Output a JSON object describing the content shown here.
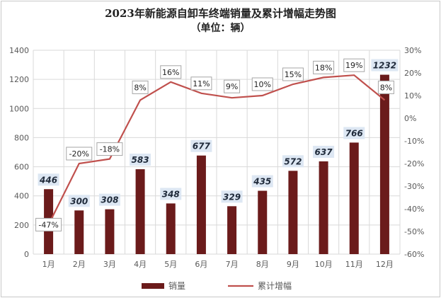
{
  "title": "2023年新能源自卸车终端销量及累计增幅走势图",
  "subtitle": "（单位：辆）",
  "colors": {
    "bar": "#6b1b1b",
    "line": "#c0504d",
    "grid": "#d9d9d9",
    "label_bg": "#dde7f3"
  },
  "chart_data": {
    "type": "bar",
    "categories": [
      "1月",
      "2月",
      "3月",
      "4月",
      "5月",
      "6月",
      "7月",
      "8月",
      "9月",
      "10月",
      "11月",
      "12月"
    ],
    "series": [
      {
        "name": "销量",
        "type": "bar",
        "axis": "left",
        "values": [
          446,
          300,
          308,
          583,
          348,
          677,
          329,
          435,
          572,
          637,
          766,
          1232
        ]
      },
      {
        "name": "累计增幅",
        "type": "line",
        "axis": "right",
        "values": [
          -47,
          -20,
          -18,
          8,
          16,
          11,
          9,
          10,
          15,
          18,
          19,
          8
        ]
      }
    ],
    "ylim_left": [
      0,
      1400
    ],
    "yticks_left": [
      "0",
      "200",
      "400",
      "600",
      "800",
      "1000",
      "1200",
      "1400"
    ],
    "ylim_right": [
      -60,
      30
    ],
    "yticks_right": [
      "-60%",
      "-50%",
      "-40%",
      "-30%",
      "-20%",
      "-10%",
      "0%",
      "10%",
      "20%",
      "30%"
    ],
    "pct_labels": [
      "-47%",
      "-20%",
      "-18%",
      "8%",
      "16%",
      "11%",
      "9%",
      "10%",
      "15%",
      "18%",
      "19%",
      "8%"
    ],
    "grid": true,
    "legend_position": "bottom"
  }
}
